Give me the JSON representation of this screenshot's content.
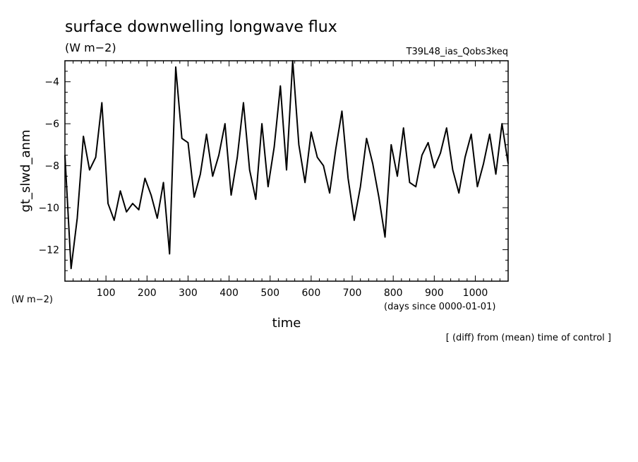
{
  "chart_data": {
    "type": "line",
    "title": "surface downwelling longwave flux",
    "units": "(W m−2)",
    "experiment": "T39L48_ias_Qobs3keq",
    "ylabel": "gt_slwd_anm",
    "yunits": "(W m−2)",
    "xlabel": "time",
    "xunits": "(days since 0000-01-01)",
    "note": "[ (diff) from (mean) time of control ]",
    "xlim": [
      0,
      1080
    ],
    "ylim": [
      -13.5,
      -3.0
    ],
    "xticks": [
      100,
      200,
      300,
      400,
      500,
      600,
      700,
      800,
      900,
      1000
    ],
    "yticks": [
      -12,
      -10,
      -8,
      -6,
      -4
    ],
    "grid": false,
    "series": [
      {
        "x": [
          0,
          15,
          30,
          45,
          60,
          75,
          90,
          105,
          120,
          135,
          150,
          165,
          180,
          195,
          210,
          225,
          240,
          255,
          270,
          285,
          300,
          315,
          330,
          345,
          360,
          375,
          390,
          405,
          420,
          435,
          450,
          465,
          480,
          495,
          510,
          525,
          540,
          555,
          570,
          585,
          600,
          615,
          630,
          645,
          660,
          675,
          690,
          705,
          720,
          735,
          750,
          765,
          780,
          795,
          810,
          825,
          840,
          855,
          870,
          885,
          900,
          915,
          930,
          945,
          960,
          975,
          990,
          1005,
          1020,
          1035,
          1050,
          1065,
          1080
        ],
        "y": [
          -7.5,
          -12.9,
          -10.5,
          -6.6,
          -8.2,
          -7.6,
          -5.0,
          -9.8,
          -10.6,
          -9.2,
          -10.2,
          -9.8,
          -10.1,
          -8.6,
          -9.4,
          -10.5,
          -8.8,
          -12.2,
          -3.3,
          -6.7,
          -6.9,
          -9.5,
          -8.4,
          -6.5,
          -8.5,
          -7.5,
          -6.0,
          -9.4,
          -7.6,
          -5.0,
          -8.2,
          -9.6,
          -6.0,
          -9.0,
          -7.1,
          -4.2,
          -8.2,
          -3.0,
          -7.0,
          -8.8,
          -6.4,
          -7.6,
          -8.0,
          -9.3,
          -7.2,
          -5.4,
          -8.6,
          -10.6,
          -9.0,
          -6.7,
          -7.9,
          -9.5,
          -11.4,
          -7.0,
          -8.5,
          -6.2,
          -8.8,
          -9.0,
          -7.5,
          -6.9,
          -8.1,
          -7.4,
          -6.2,
          -8.2,
          -9.3,
          -7.6,
          -6.5,
          -9.0,
          -7.9,
          -6.5,
          -8.4,
          -6.0,
          -7.9
        ]
      }
    ]
  }
}
